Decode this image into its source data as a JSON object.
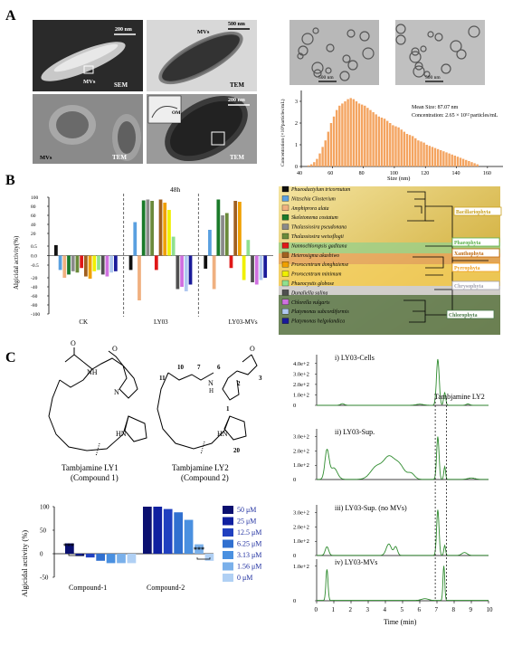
{
  "panel_labels": {
    "a": "A",
    "b": "B",
    "c": "C"
  },
  "panelA": {
    "images": [
      {
        "label": "SEM",
        "scale": "200 nm",
        "arrow": "MVs"
      },
      {
        "label": "TEM",
        "scale": "500 nm",
        "arrow": "MVs"
      },
      {
        "label": "TEM",
        "scale": "",
        "arrow": "MVs"
      },
      {
        "label": "TEM",
        "scale": "200 nm",
        "inset": "OM"
      },
      {
        "label": "",
        "scale": "500 nm"
      },
      {
        "label": "",
        "scale": "500 nm"
      }
    ]
  },
  "colors": {
    "orange": "#f4a460",
    "green_line": "#2e8b2e",
    "blue_dark": "#1a1a8c",
    "bacillariophyta": "#c8a020",
    "chlorophyta": "#4a7a4a"
  },
  "chart_data": [
    {
      "type": "bar",
      "id": "size-histogram",
      "xlabel": "Size (nm)",
      "ylabel": "Concentration (×10⁸particles/mL)",
      "x_ticks": [
        "40",
        "60",
        "80",
        "100",
        "120",
        "140",
        "160"
      ],
      "y_ticks": [
        "0",
        "1",
        "2",
        "3"
      ],
      "xlim": [
        40,
        170
      ],
      "ylim": [
        0,
        3.5
      ],
      "annotations": [
        "Mean Size: 87.07 nm",
        "Concentration: 2.65 × 10¹² particles/mL"
      ],
      "values": [
        0.05,
        0.1,
        0.2,
        0.35,
        0.6,
        0.9,
        1.2,
        1.6,
        2.0,
        2.3,
        2.6,
        2.8,
        2.9,
        3.0,
        3.1,
        3.15,
        3.1,
        3.0,
        2.9,
        2.85,
        2.8,
        2.7,
        2.6,
        2.5,
        2.4,
        2.3,
        2.25,
        2.2,
        2.1,
        2.0,
        1.9,
        1.85,
        1.8,
        1.7,
        1.6,
        1.5,
        1.45,
        1.4,
        1.3,
        1.2,
        1.15,
        1.1,
        1.0,
        0.95,
        0.9,
        0.85,
        0.8,
        0.75,
        0.7,
        0.65,
        0.6,
        0.55,
        0.5,
        0.45,
        0.4,
        0.35,
        0.3,
        0.25,
        0.2,
        0.15,
        0.1
      ]
    },
    {
      "type": "bar",
      "id": "algicidal-48h",
      "title": "48h",
      "ylabel": "Algicidal activity(%)",
      "categories": [
        "CK",
        "LY03",
        "LY03-MVs"
      ],
      "y_ticks": [
        "100",
        "80",
        "60",
        "40",
        "20",
        "0.5",
        "0.0",
        "-0.5",
        "-20",
        "-40",
        "-60",
        "-80",
        "-100"
      ],
      "series": [
        {
          "name": "Phaeodactylum tricornutum",
          "color": "#111111",
          "values": [
            2,
            -8,
            -6
          ]
        },
        {
          "name": "Nitzschia Closterium",
          "color": "#5aa0e0",
          "values": [
            -8,
            45,
            28
          ]
        },
        {
          "name": "Amphiprora alata",
          "color": "#f0b080",
          "values": [
            -20,
            -70,
            -45
          ]
        },
        {
          "name": "Skeletonema costatum",
          "color": "#1a7a2a",
          "values": [
            -15,
            93,
            95
          ]
        },
        {
          "name": "Thalassiosira pseudonana",
          "color": "#8a8a8a",
          "values": [
            -10,
            95,
            60
          ]
        },
        {
          "name": "Thalassiosira weissflogii",
          "color": "#6a8a3a",
          "values": [
            -12,
            92,
            65
          ]
        },
        {
          "name": "Nannochloropsis gaditana",
          "color": "#e01818",
          "values": [
            -5,
            -8,
            -5
          ]
        },
        {
          "name": "Heterosigma akashiwo",
          "color": "#a06020",
          "values": [
            -18,
            95,
            92
          ]
        },
        {
          "name": "Prorocentrum donghaiense",
          "color": "#f0a000",
          "values": [
            -22,
            88,
            90
          ]
        },
        {
          "name": "Prorocentrum minimum",
          "color": "#f0f000",
          "values": [
            -10,
            72,
            -25
          ]
        },
        {
          "name": "Phaeocystis globose",
          "color": "#90e090",
          "values": [
            -8,
            15,
            10
          ]
        },
        {
          "name": "Dunaliella salina",
          "color": "#505050",
          "values": [
            -15,
            -45,
            -30
          ]
        },
        {
          "name": "Chlorella vulgaris",
          "color": "#d070e0",
          "values": [
            -18,
            -40,
            -35
          ]
        },
        {
          "name": "Platymonas subcordiformis",
          "color": "#b0c8f0",
          "values": [
            -12,
            -50,
            -25
          ]
        },
        {
          "name": "Platymonas helgolandica",
          "color": "#1a1a9a",
          "values": [
            -10,
            -35,
            -20
          ]
        }
      ]
    },
    {
      "type": "bar",
      "id": "compound-algicidal",
      "ylabel": "Algicidal activity (%)",
      "categories": [
        "Compound-1",
        "Compound-2"
      ],
      "y_ticks": [
        "100",
        "50",
        "0",
        "-50"
      ],
      "ylim": [
        -50,
        100
      ],
      "annotations": [
        "***",
        "***"
      ],
      "series": [
        {
          "name": "50 μM",
          "color": "#0a1070",
          "values": [
            22,
            100
          ]
        },
        {
          "name": "25 μM",
          "color": "#1020a0",
          "values": [
            -5,
            100
          ]
        },
        {
          "name": "12.5 μM",
          "color": "#2040c0",
          "values": [
            -8,
            95
          ]
        },
        {
          "name": "6.25 μM",
          "color": "#3070d0",
          "values": [
            -15,
            88
          ]
        },
        {
          "name": "3.13 μM",
          "color": "#4a90e0",
          "values": [
            -20,
            72
          ]
        },
        {
          "name": "1.56 μM",
          "color": "#7ab0ea",
          "values": [
            -20,
            20
          ]
        },
        {
          "name": "0 μM",
          "color": "#b0d0f4",
          "values": [
            -20,
            -15
          ]
        }
      ]
    },
    {
      "type": "line",
      "id": "hplc-traces",
      "xlabel": "Time (min)",
      "x_ticks": [
        "0",
        "1",
        "2",
        "3",
        "4",
        "5",
        "6",
        "7",
        "8",
        "9",
        "10"
      ],
      "xlim": [
        0,
        10
      ],
      "annotations": [
        "Tambjamine LY2"
      ],
      "panels": [
        {
          "label": "i) LY03-Cells",
          "y_ticks": [
            "4.0e+2",
            "3.0e+2",
            "2.0e+2",
            "1.0e+2",
            "0"
          ],
          "ymax": 450,
          "peaks": [
            [
              7.05,
              440,
              0.08
            ],
            [
              7.45,
              120,
              0.06
            ],
            [
              6.0,
              10,
              0.2
            ],
            [
              1.5,
              15,
              0.1
            ],
            [
              8.8,
              12,
              0.1
            ]
          ]
        },
        {
          "label": "ii) LY03-Sup.",
          "y_ticks": [
            "3.0e+2",
            "2.0e+2",
            "1.0e+2",
            "0"
          ],
          "ymax": 330,
          "peaks": [
            [
              0.6,
              200,
              0.12
            ],
            [
              1.0,
              80,
              0.2
            ],
            [
              3.5,
              90,
              0.35
            ],
            [
              4.2,
              140,
              0.3
            ],
            [
              4.8,
              100,
              0.3
            ],
            [
              5.5,
              40,
              0.2
            ],
            [
              7.05,
              300,
              0.07
            ],
            [
              7.45,
              90,
              0.05
            ],
            [
              9.0,
              10,
              0.2
            ]
          ]
        },
        {
          "label": "iii) LY03-Sup. (no MVs)",
          "y_ticks": [
            "3.0e+2",
            "2.0e+2",
            "1.0e+2",
            "0"
          ],
          "ymax": 330,
          "peaks": [
            [
              0.6,
              60,
              0.1
            ],
            [
              4.2,
              80,
              0.15
            ],
            [
              4.6,
              60,
              0.1
            ],
            [
              7.05,
              320,
              0.07
            ],
            [
              7.45,
              70,
              0.05
            ],
            [
              8.6,
              20,
              0.15
            ]
          ]
        },
        {
          "label": "iv) LY03-MVs",
          "y_ticks": [
            "1.0e+2",
            "0"
          ],
          "ymax": 110,
          "peaks": [
            [
              0.6,
              90,
              0.06
            ],
            [
              7.4,
              100,
              0.05
            ],
            [
              6.3,
              5,
              0.2
            ]
          ]
        }
      ]
    }
  ],
  "legendB": {
    "groups": [
      {
        "name": "Bacillariophyta",
        "color": "#c8a020"
      },
      {
        "name": "Phaeophyta",
        "color": "#5ab04a"
      },
      {
        "name": "Xanthophyta",
        "color": "#c06a10"
      },
      {
        "name": "Pyrrophyta",
        "color": "#f0a020"
      },
      {
        "name": "Chrysophyta",
        "color": "#a0a0b0"
      },
      {
        "name": "Chlorophyta",
        "color": "#4a7a4a"
      }
    ]
  },
  "panelC_chem": {
    "compound1_name": "Tambjamine LY1",
    "compound1_sub": "(Compound 1)",
    "compound2_name": "Tambjamine LY2",
    "compound2_sub": "(Compound 2)",
    "atoms1": [
      "O",
      "NH",
      "O",
      "N",
      "HN"
    ],
    "atoms2": [
      "O",
      "N",
      "H",
      "HN"
    ],
    "numbers2": [
      "10",
      "11",
      "7",
      "6",
      "2",
      "3",
      "1",
      "20"
    ]
  }
}
